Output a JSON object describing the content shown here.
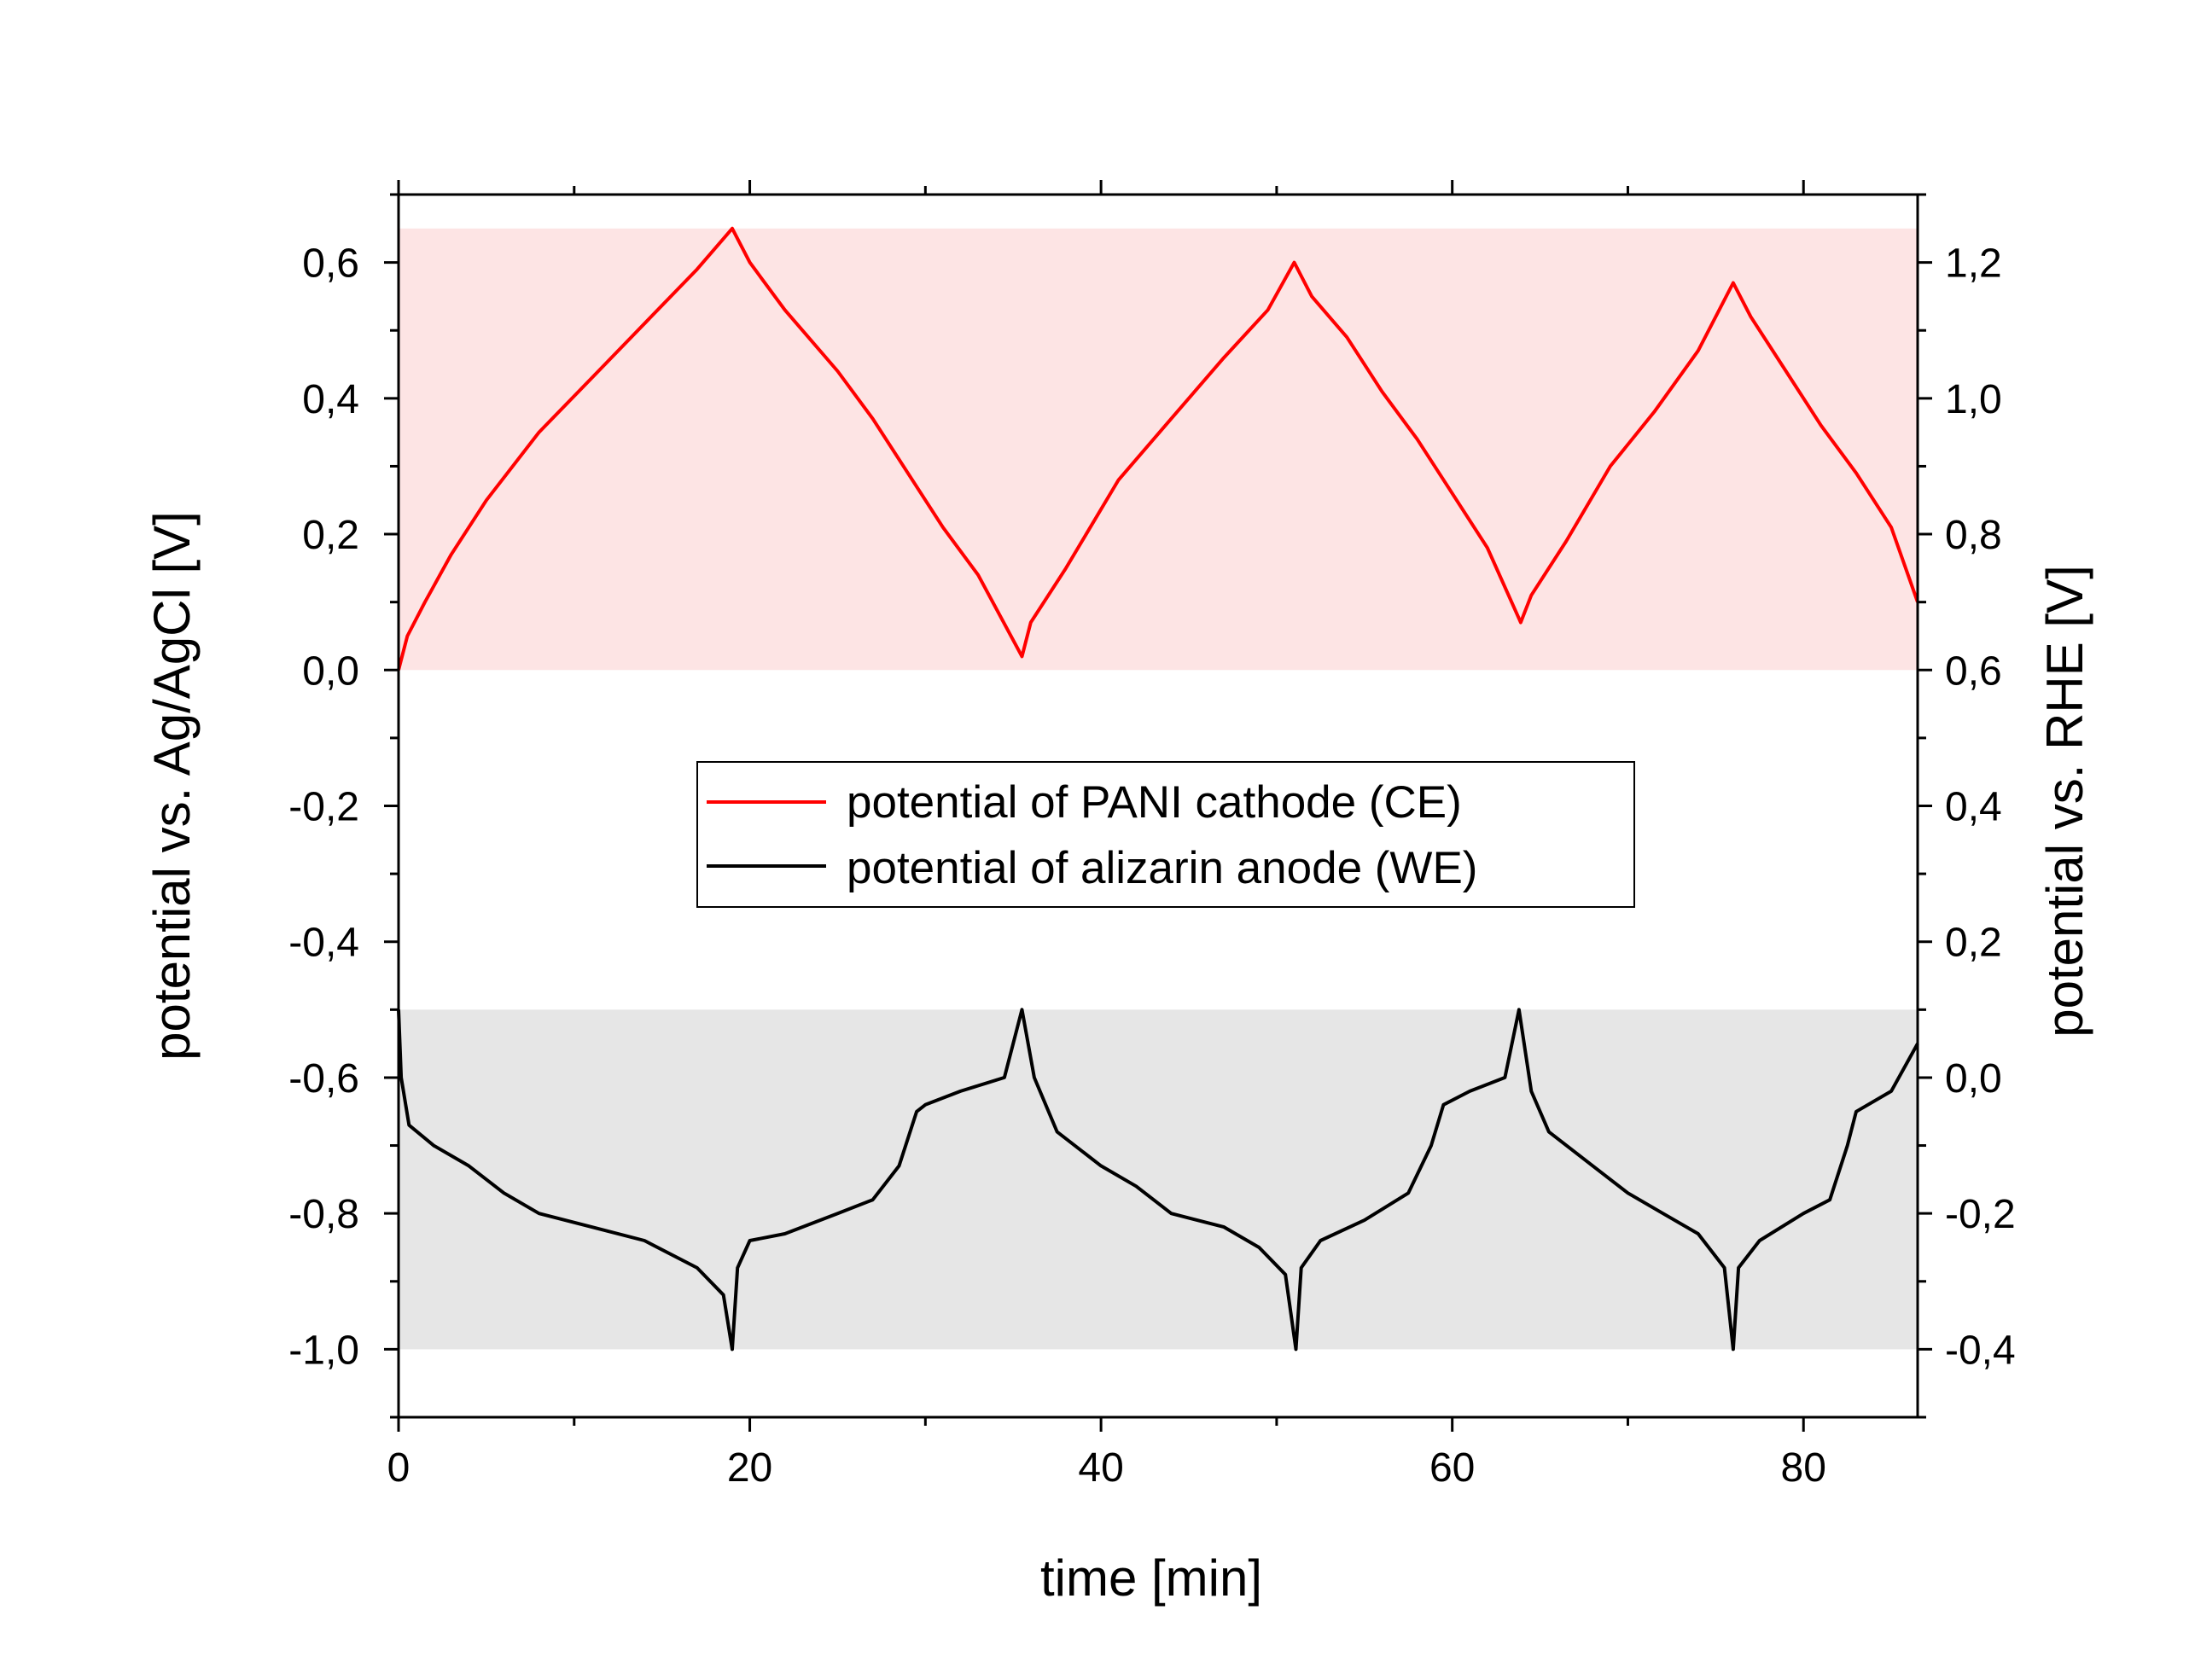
{
  "chart_data": {
    "type": "line",
    "xlabel": "time [min]",
    "ylabel_left": "potential vs. Ag/AgCl [V]",
    "ylabel_right": "potential vs. RHE [V]",
    "xlim": [
      0,
      86.5
    ],
    "ylim_left": [
      -1.1,
      0.7
    ],
    "ylim_right": [
      -0.5,
      1.3
    ],
    "x_ticks": [
      0,
      20,
      40,
      60,
      80
    ],
    "x_tick_labels": [
      "0",
      "20",
      "40",
      "60",
      "80"
    ],
    "y_left_ticks": [
      -1.0,
      -0.8,
      -0.6,
      -0.4,
      -0.2,
      0.0,
      0.2,
      0.4,
      0.6
    ],
    "y_left_tick_labels": [
      "-1,0",
      "-0,8",
      "-0,6",
      "-0,4",
      "-0,2",
      "0,0",
      "0,2",
      "0,4",
      "0,6"
    ],
    "y_right_ticks": [
      -0.4,
      -0.2,
      0.0,
      0.2,
      0.4,
      0.6,
      0.8,
      1.0,
      1.2
    ],
    "y_right_tick_labels": [
      "-0,4",
      "-0,2",
      "0,0",
      "0,2",
      "0,4",
      "0,6",
      "0,8",
      "1,0",
      "1,2"
    ],
    "shaded_bands": [
      {
        "y_from": 0.0,
        "y_to": 0.65,
        "color": "#fde4e4"
      },
      {
        "y_from": -1.0,
        "y_to": -0.5,
        "color": "#e6e6e6"
      }
    ],
    "legend": {
      "placement": "center"
    },
    "series": [
      {
        "name": "potential of PANI cathode (CE)",
        "color": "#ff0000",
        "points": [
          [
            0,
            0.0
          ],
          [
            0.5,
            0.05
          ],
          [
            1.5,
            0.1
          ],
          [
            3,
            0.17
          ],
          [
            5,
            0.25
          ],
          [
            8,
            0.35
          ],
          [
            11,
            0.43
          ],
          [
            14,
            0.51
          ],
          [
            17,
            0.59
          ],
          [
            19,
            0.65
          ],
          [
            20,
            0.6
          ],
          [
            22,
            0.53
          ],
          [
            25,
            0.44
          ],
          [
            27,
            0.37
          ],
          [
            29,
            0.29
          ],
          [
            31,
            0.21
          ],
          [
            33,
            0.14
          ],
          [
            35.5,
            0.02
          ],
          [
            36,
            0.07
          ],
          [
            38,
            0.15
          ],
          [
            41,
            0.28
          ],
          [
            44,
            0.37
          ],
          [
            47,
            0.46
          ],
          [
            49.5,
            0.53
          ],
          [
            51,
            0.6
          ],
          [
            52,
            0.55
          ],
          [
            54,
            0.49
          ],
          [
            56,
            0.41
          ],
          [
            58,
            0.34
          ],
          [
            60,
            0.26
          ],
          [
            62,
            0.18
          ],
          [
            63.9,
            0.07
          ],
          [
            64.5,
            0.11
          ],
          [
            66.5,
            0.19
          ],
          [
            69,
            0.3
          ],
          [
            71.5,
            0.38
          ],
          [
            74,
            0.47
          ],
          [
            76,
            0.57
          ],
          [
            77,
            0.52
          ],
          [
            79,
            0.44
          ],
          [
            81,
            0.36
          ],
          [
            83,
            0.29
          ],
          [
            85,
            0.21
          ],
          [
            86.5,
            0.1
          ]
        ]
      },
      {
        "name": "potential of alizarin anode (WE)",
        "color": "#000000",
        "points": [
          [
            0,
            -0.5
          ],
          [
            0.15,
            -0.6
          ],
          [
            0.6,
            -0.67
          ],
          [
            2,
            -0.7
          ],
          [
            4,
            -0.73
          ],
          [
            6,
            -0.77
          ],
          [
            8,
            -0.8
          ],
          [
            11,
            -0.82
          ],
          [
            14,
            -0.84
          ],
          [
            17,
            -0.88
          ],
          [
            18.5,
            -0.92
          ],
          [
            19,
            -1.0
          ],
          [
            19.3,
            -0.88
          ],
          [
            20,
            -0.84
          ],
          [
            22,
            -0.83
          ],
          [
            25,
            -0.8
          ],
          [
            27,
            -0.78
          ],
          [
            28.5,
            -0.73
          ],
          [
            29.5,
            -0.65
          ],
          [
            30,
            -0.64
          ],
          [
            32,
            -0.62
          ],
          [
            34.5,
            -0.6
          ],
          [
            35.5,
            -0.5
          ],
          [
            36.2,
            -0.6
          ],
          [
            37.5,
            -0.68
          ],
          [
            40,
            -0.73
          ],
          [
            42,
            -0.76
          ],
          [
            44,
            -0.8
          ],
          [
            47,
            -0.82
          ],
          [
            49,
            -0.85
          ],
          [
            50.5,
            -0.89
          ],
          [
            51.1,
            -1.0
          ],
          [
            51.4,
            -0.88
          ],
          [
            52.5,
            -0.84
          ],
          [
            55,
            -0.81
          ],
          [
            57.5,
            -0.77
          ],
          [
            58.8,
            -0.7
          ],
          [
            59.5,
            -0.64
          ],
          [
            61,
            -0.62
          ],
          [
            63,
            -0.6
          ],
          [
            63.8,
            -0.5
          ],
          [
            64.5,
            -0.62
          ],
          [
            65.5,
            -0.68
          ],
          [
            68,
            -0.73
          ],
          [
            70,
            -0.77
          ],
          [
            72,
            -0.8
          ],
          [
            74,
            -0.83
          ],
          [
            75.5,
            -0.88
          ],
          [
            76,
            -1.0
          ],
          [
            76.3,
            -0.88
          ],
          [
            77.5,
            -0.84
          ],
          [
            80,
            -0.8
          ],
          [
            81.5,
            -0.78
          ],
          [
            82.5,
            -0.7
          ],
          [
            83,
            -0.65
          ],
          [
            85,
            -0.62
          ],
          [
            86.5,
            -0.55
          ]
        ]
      }
    ]
  }
}
